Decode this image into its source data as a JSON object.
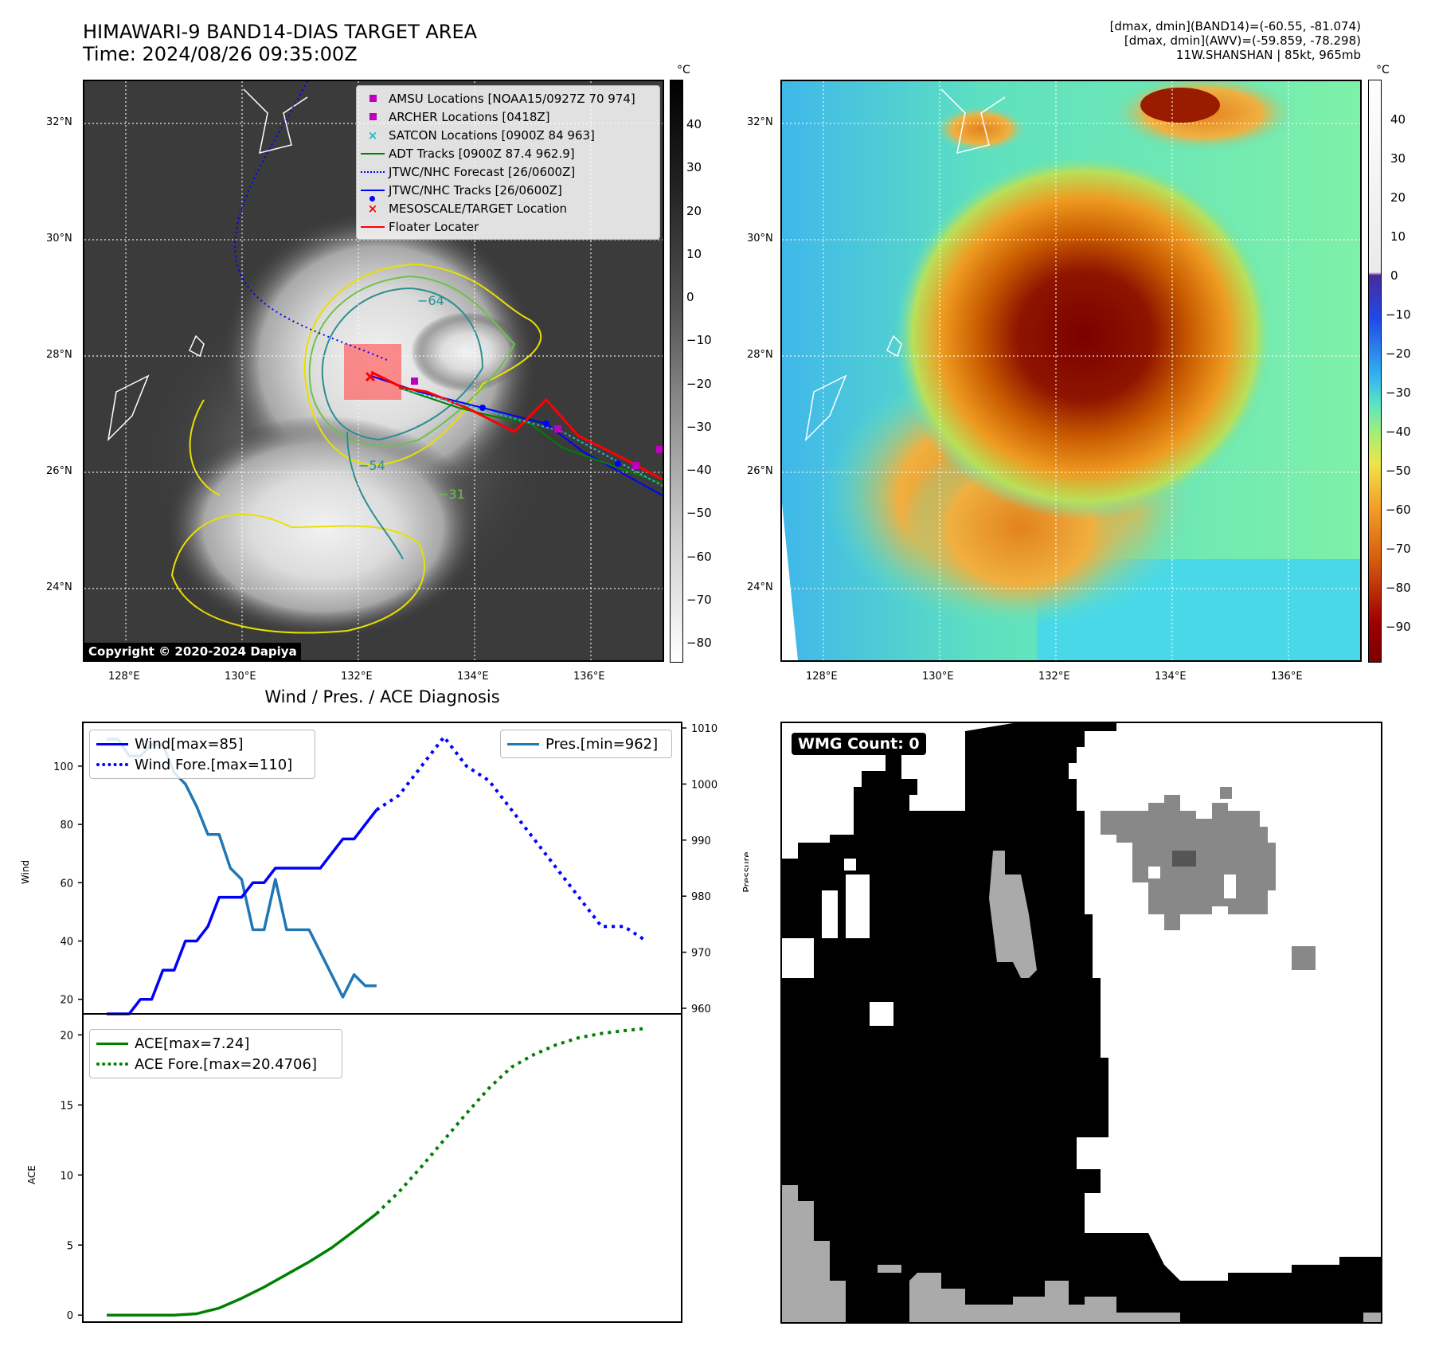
{
  "top_left": {
    "title_line1": "HIMAWARI-9 BAND14-DIAS TARGET AREA",
    "title_line2": "Time: 2024/08/26 09:35:00Z",
    "unit": "°C",
    "copyright": "Copyright © 2020-2024 Dapiya",
    "contour_labels": [
      "−64",
      "−54",
      "−31"
    ],
    "legend": [
      {
        "label": "AMSU Locations [NOAA15/0927Z 70 974]",
        "marker": "square",
        "color": "#bf00bf"
      },
      {
        "label": "ARCHER Locations [0418Z]",
        "marker": "square",
        "color": "#bf00bf"
      },
      {
        "label": "SATCON Locations [0900Z 84 963]",
        "marker": "x",
        "color": "#17becf"
      },
      {
        "label": "ADT Tracks [0900Z 87.4 962.9]",
        "marker": "line",
        "color": "#008000"
      },
      {
        "label": "JTWC/NHC Forecast [26/0600Z]",
        "marker": "dotted",
        "color": "#0000ff"
      },
      {
        "label": "JTWC/NHC Tracks [26/0600Z]",
        "marker": "line-dot",
        "color": "#0000ff"
      },
      {
        "label": "MESOSCALE/TARGET Location",
        "marker": "x",
        "color": "#ff0000"
      },
      {
        "label": "Floater Locater",
        "marker": "line",
        "color": "#ff0000"
      }
    ],
    "colorbar_ticks": [
      "40",
      "30",
      "20",
      "10",
      "0",
      "−10",
      "−20",
      "−30",
      "−40",
      "−50",
      "−60",
      "−70",
      "−80"
    ]
  },
  "top_right": {
    "info_line1": "[dmax, dmin](BAND14)=(-60.55, -81.074)",
    "info_line2": "[dmax, dmin](AWV)=(-59.859, -78.298)",
    "info_line3": "11W.SHANSHAN | 85kt, 965mb",
    "unit": "°C",
    "colorbar_ticks": [
      "40",
      "30",
      "20",
      "10",
      "0",
      "−10",
      "−20",
      "−30",
      "−40",
      "−50",
      "−60",
      "−70",
      "−80",
      "−90"
    ]
  },
  "map_axes": {
    "lat_labels": [
      "32°N",
      "30°N",
      "28°N",
      "26°N",
      "24°N"
    ],
    "lon_labels": [
      "128°E",
      "130°E",
      "132°E",
      "134°E",
      "136°E"
    ]
  },
  "bottom_left": {
    "title": "Wind / Pres. / ACE Diagnosis",
    "wind_ylabel": "Wind",
    "pressure_ylabel": "Pressure",
    "ace_ylabel": "ACE",
    "wind_ticks": [
      "100",
      "80",
      "60",
      "40",
      "20"
    ],
    "pressure_ticks": [
      "1010",
      "1000",
      "990",
      "980",
      "970",
      "960"
    ],
    "ace_ticks": [
      "20",
      "15",
      "10",
      "5",
      "0"
    ],
    "legend_wind": [
      "Wind[max=85]",
      "Wind Fore.[max=110]"
    ],
    "legend_pres": [
      "Pres.[min=962]"
    ],
    "legend_ace": [
      "ACE[max=7.24]",
      "ACE Fore.[max=20.4706]"
    ]
  },
  "bottom_right": {
    "badge": "WMG Count: 0"
  },
  "chart_data": [
    {
      "type": "line",
      "series": [
        {
          "name": "Wind[max=85]",
          "x": [
            0,
            1,
            2,
            3,
            4,
            5,
            6,
            7,
            8,
            9,
            10,
            11,
            12,
            13,
            14,
            15,
            16,
            17,
            18,
            19,
            20,
            21,
            22,
            23,
            24
          ],
          "values": [
            15,
            15,
            15,
            20,
            20,
            30,
            30,
            40,
            40,
            45,
            55,
            55,
            55,
            60,
            60,
            65,
            65,
            65,
            65,
            65,
            70,
            75,
            75,
            80,
            85
          ]
        },
        {
          "name": "Wind Fore.[max=110]",
          "x": [
            24,
            26,
            28,
            30,
            32,
            34,
            36,
            38,
            40,
            42,
            44,
            46,
            48
          ],
          "values": [
            85,
            90,
            100,
            110,
            100,
            95,
            85,
            75,
            65,
            55,
            45,
            45,
            40
          ]
        },
        {
          "name": "Pres.[min=962]",
          "x": [
            0,
            1,
            2,
            3,
            4,
            5,
            6,
            7,
            8,
            9,
            10,
            11,
            12,
            13,
            14,
            15,
            16,
            17,
            18,
            19,
            20,
            21,
            22,
            23,
            24
          ],
          "values": [
            1008,
            1008,
            1005,
            1005,
            1007,
            1007,
            1002,
            1000,
            996,
            991,
            991,
            985,
            983,
            974,
            974,
            983,
            974,
            974,
            974,
            970,
            966,
            962,
            966,
            964,
            964
          ]
        }
      ],
      "y_left_range": [
        15,
        115
      ],
      "y_right_range": [
        959,
        1011
      ]
    },
    {
      "type": "line",
      "series": [
        {
          "name": "ACE[max=7.24]",
          "x": [
            0,
            2,
            4,
            6,
            8,
            10,
            12,
            14,
            16,
            18,
            20,
            22,
            24
          ],
          "values": [
            0,
            0,
            0,
            0,
            0.1,
            0.5,
            1.2,
            2.0,
            2.9,
            3.8,
            4.8,
            6.0,
            7.24
          ]
        },
        {
          "name": "ACE Fore.[max=20.4706]",
          "x": [
            24,
            26,
            28,
            30,
            32,
            34,
            36,
            38,
            40,
            42,
            44,
            46,
            48
          ],
          "values": [
            7.24,
            8.8,
            10.6,
            12.5,
            14.4,
            16.2,
            17.7,
            18.6,
            19.3,
            19.8,
            20.1,
            20.3,
            20.47
          ]
        }
      ],
      "y_range": [
        -0.5,
        21.5
      ]
    }
  ]
}
